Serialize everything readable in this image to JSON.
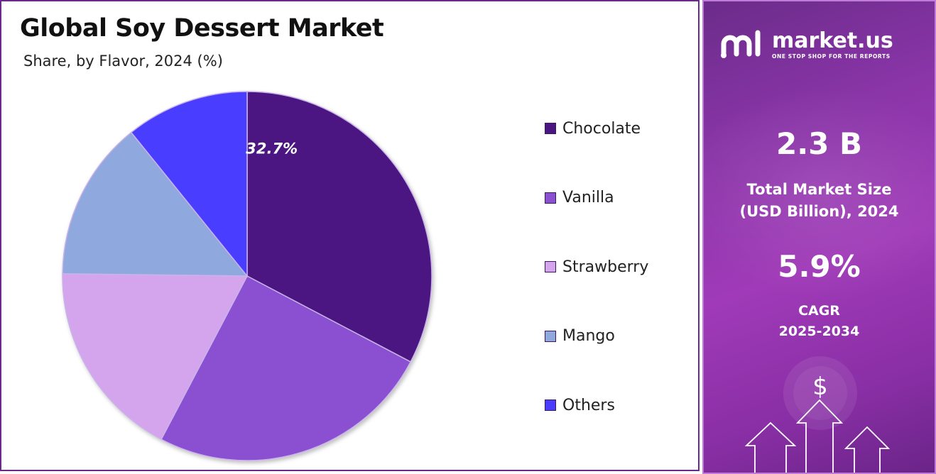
{
  "chart_data": {
    "type": "pie",
    "title": "Global Soy Dessert Market",
    "subtitle": "Share, by Flavor, 2024 (%)",
    "categories": [
      "Chocolate",
      "Vanilla",
      "Strawberry",
      "Mango",
      "Others"
    ],
    "values": [
      32.7,
      25.0,
      17.5,
      14.0,
      10.8
    ],
    "colors": [
      "#4b1681",
      "#8b4fd1",
      "#d4a5ec",
      "#8fa8dd",
      "#4a3dff"
    ],
    "data_labels": [
      "32.7%",
      "",
      "",
      "",
      ""
    ],
    "legend_position": "right",
    "start_angle": "12 o'clock",
    "direction": "clockwise"
  },
  "info_panel": {
    "brand_name": "market.us",
    "brand_tagline": "ONE STOP SHOP FOR THE REPORTS",
    "market_size_value": "2.3 B",
    "market_size_label_line1": "Total Market Size",
    "market_size_label_line2": "(USD Billion), 2024",
    "cagr_value": "5.9%",
    "cagr_label_line1": "CAGR",
    "cagr_label_line2": "2025-2034",
    "decor_symbol": "$",
    "icons": [
      "market-us-logo-icon",
      "coin-icon",
      "arrow-up-icon"
    ],
    "colors": {
      "panel": "#8a35a8",
      "text": "#ffffff"
    }
  }
}
